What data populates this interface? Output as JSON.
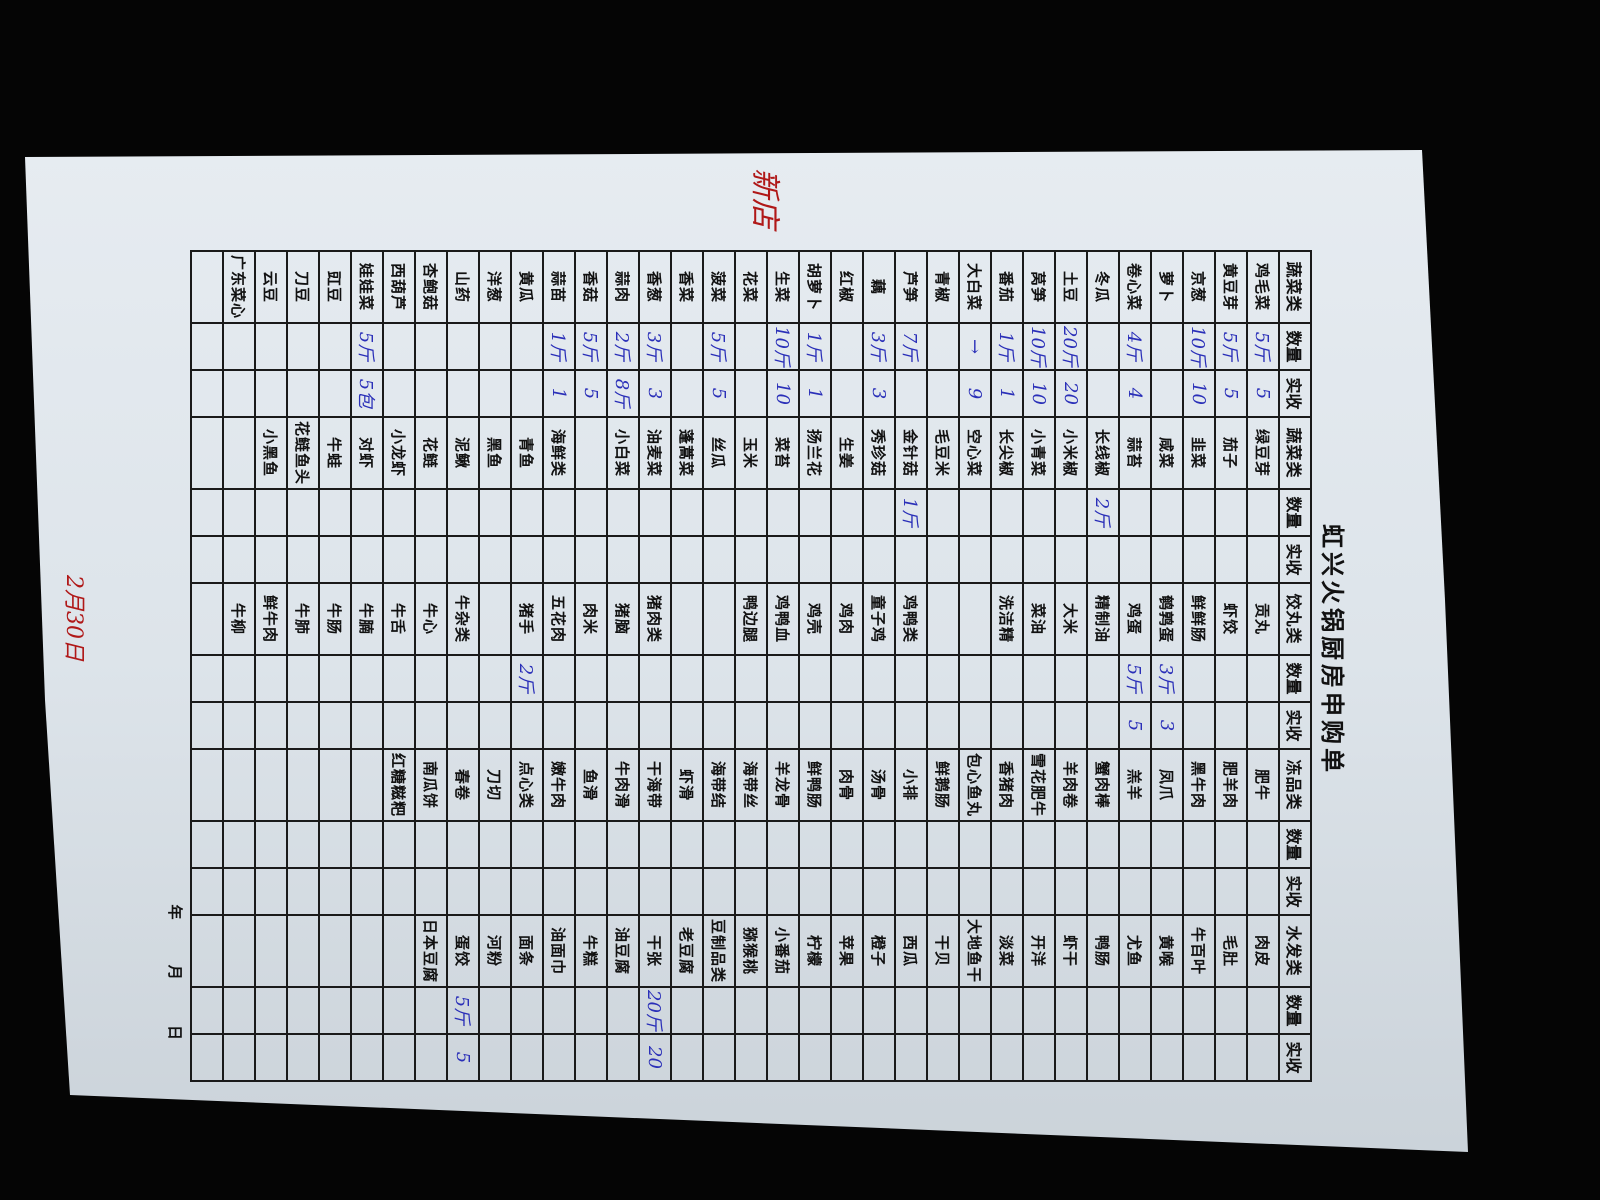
{
  "document": {
    "title": "虹兴火锅厨房申购单",
    "headers": [
      {
        "n": "蔬菜类",
        "q": "数量",
        "r": "实收"
      },
      {
        "n": "蔬菜类",
        "q": "数量",
        "r": "实收"
      },
      {
        "n": "饺丸类",
        "q": "数量",
        "r": "实收"
      },
      {
        "n": "冻品类",
        "q": "数量",
        "r": "实收"
      },
      {
        "n": "水发类",
        "q": "数量",
        "r": "实收"
      }
    ],
    "rows": [
      [
        {
          "n": "鸡毛菜",
          "q": "5斤",
          "r": "5"
        },
        {
          "n": "绿豆芽"
        },
        {
          "n": "贡丸"
        },
        {
          "n": "肥牛"
        },
        {
          "n": "肉皮"
        }
      ],
      [
        {
          "n": "黄豆芽",
          "q": "5斤",
          "r": "5"
        },
        {
          "n": "茄子"
        },
        {
          "n": "虾饺"
        },
        {
          "n": "肥羊肉"
        },
        {
          "n": "毛肚"
        }
      ],
      [
        {
          "n": "京葱",
          "q": "10斤",
          "r": "10"
        },
        {
          "n": "韭菜"
        },
        {
          "n": "鲜鲜肠"
        },
        {
          "n": "黑牛肉"
        },
        {
          "n": "牛百叶"
        }
      ],
      [
        {
          "n": "萝卜"
        },
        {
          "n": "咸菜"
        },
        {
          "n": "鹌鹑蛋",
          "q": "3斤",
          "r": "3"
        },
        {
          "n": "凤爪"
        },
        {
          "n": "黄喉"
        }
      ],
      [
        {
          "n": "卷心菜",
          "q": "4斤",
          "r": "4"
        },
        {
          "n": "蒜苔"
        },
        {
          "n": "鸡蛋",
          "q": "5斤",
          "r": "5"
        },
        {
          "n": "羔羊"
        },
        {
          "n": "尤鱼"
        }
      ],
      [
        {
          "n": "冬瓜"
        },
        {
          "n": "长线椒",
          "q": "2斤"
        },
        {
          "n": "精制油"
        },
        {
          "n": "蟹肉棒"
        },
        {
          "n": "鸭肠"
        }
      ],
      [
        {
          "n": "土豆",
          "q": "20斤",
          "r": "20"
        },
        {
          "n": "小米椒"
        },
        {
          "n": "大米"
        },
        {
          "n": "羊肉卷"
        },
        {
          "n": "虾干"
        }
      ],
      [
        {
          "n": "莴笋",
          "q": "10斤",
          "r": "10"
        },
        {
          "n": "小青菜"
        },
        {
          "n": "菜油"
        },
        {
          "n": "雪花肥牛"
        },
        {
          "n": "开洋"
        }
      ],
      [
        {
          "n": "番茄",
          "q": "1斤",
          "r": "1"
        },
        {
          "n": "长尖椒"
        },
        {
          "n": "洗洁精"
        },
        {
          "n": "香猪肉"
        },
        {
          "n": "淡菜"
        }
      ],
      [
        {
          "n": "大白菜",
          "q": "→",
          "r": "9"
        },
        {
          "n": "空心菜"
        },
        {
          "n": ""
        },
        {
          "n": "包心鱼丸"
        },
        {
          "n": "大地鱼干"
        }
      ],
      [
        {
          "n": "青椒"
        },
        {
          "n": "毛豆米"
        },
        {
          "n": ""
        },
        {
          "n": "鲜鹅肠"
        },
        {
          "n": "干贝"
        }
      ],
      [
        {
          "n": "芦笋",
          "q": "7斤"
        },
        {
          "n": "金针菇",
          "q": "1斤"
        },
        {
          "n": "鸡鸭类"
        },
        {
          "n": "小排"
        },
        {
          "n": "西瓜"
        }
      ],
      [
        {
          "n": "藕",
          "q": "3斤",
          "r": "3"
        },
        {
          "n": "秀珍菇"
        },
        {
          "n": "童子鸡"
        },
        {
          "n": "汤骨"
        },
        {
          "n": "橙子"
        }
      ],
      [
        {
          "n": "红椒"
        },
        {
          "n": "生姜"
        },
        {
          "n": "鸡肉"
        },
        {
          "n": "肉骨"
        },
        {
          "n": "苹果"
        }
      ],
      [
        {
          "n": "胡萝卜",
          "q": "1斤",
          "r": "1"
        },
        {
          "n": "扬兰花"
        },
        {
          "n": "鸡壳"
        },
        {
          "n": "鲜鸭肠"
        },
        {
          "n": "柠檬"
        }
      ],
      [
        {
          "n": "生菜",
          "q": "10斤",
          "r": "10"
        },
        {
          "n": "菜苔"
        },
        {
          "n": "鸡鸭血"
        },
        {
          "n": "羊龙骨"
        },
        {
          "n": "小番茄"
        }
      ],
      [
        {
          "n": "花菜"
        },
        {
          "n": "玉米"
        },
        {
          "n": "鸭边腿"
        },
        {
          "n": "海带丝"
        },
        {
          "n": "猕猴桃"
        }
      ],
      [
        {
          "n": "菠菜",
          "q": "5斤",
          "r": "5"
        },
        {
          "n": "丝瓜"
        },
        {
          "n": ""
        },
        {
          "n": "海带结"
        },
        {
          "n": "豆制品类"
        }
      ],
      [
        {
          "n": "香菜"
        },
        {
          "n": "蓬蒿菜"
        },
        {
          "n": ""
        },
        {
          "n": "虾滑"
        },
        {
          "n": "老豆腐"
        }
      ],
      [
        {
          "n": "香葱",
          "q": "3斤",
          "r": "3"
        },
        {
          "n": "油麦菜"
        },
        {
          "n": "猪肉类"
        },
        {
          "n": "干海带"
        },
        {
          "n": "干张",
          "q": "20斤",
          "r": "20"
        }
      ],
      [
        {
          "n": "蒜肉",
          "q": "2斤",
          "r": "8斤"
        },
        {
          "n": "小白菜"
        },
        {
          "n": "猪脑"
        },
        {
          "n": "牛肉滑"
        },
        {
          "n": "油豆腐"
        }
      ],
      [
        {
          "n": "香菇",
          "q": "5斤",
          "r": "5"
        },
        {
          "n": ""
        },
        {
          "n": "肉米"
        },
        {
          "n": "鱼滑"
        },
        {
          "n": "牛糕"
        }
      ],
      [
        {
          "n": "蒜苗",
          "q": "1斤",
          "r": "1"
        },
        {
          "n": "海鲜类"
        },
        {
          "n": "五花肉"
        },
        {
          "n": "嫩牛肉"
        },
        {
          "n": "油面巾"
        }
      ],
      [
        {
          "n": "黄瓜"
        },
        {
          "n": "青鱼"
        },
        {
          "n": "猪手",
          "q": "2斤"
        },
        {
          "n": "点心类"
        },
        {
          "n": "面条"
        }
      ],
      [
        {
          "n": "洋葱"
        },
        {
          "n": "黑鱼"
        },
        {
          "n": ""
        },
        {
          "n": "刀切"
        },
        {
          "n": "河粉"
        }
      ],
      [
        {
          "n": "山药"
        },
        {
          "n": "泥鳅"
        },
        {
          "n": "牛杂类"
        },
        {
          "n": "春卷"
        },
        {
          "n": "蛋饺",
          "q": "5斤",
          "r": "5"
        }
      ],
      [
        {
          "n": "杏鲍菇"
        },
        {
          "n": "花鲢"
        },
        {
          "n": "牛心"
        },
        {
          "n": "南瓜饼"
        },
        {
          "n": "日本豆腐"
        }
      ],
      [
        {
          "n": "西葫芦"
        },
        {
          "n": "小龙虾"
        },
        {
          "n": "牛舌"
        },
        {
          "n": "红糖糍粑"
        },
        {
          "n": ""
        }
      ],
      [
        {
          "n": "娃娃菜",
          "q": "5斤",
          "r": "5包"
        },
        {
          "n": "对虾"
        },
        {
          "n": "牛腩"
        },
        {
          "n": ""
        },
        {
          "n": ""
        }
      ],
      [
        {
          "n": "豇豆"
        },
        {
          "n": "牛蛙"
        },
        {
          "n": "牛肠"
        },
        {
          "n": ""
        },
        {
          "n": ""
        }
      ],
      [
        {
          "n": "刀豆"
        },
        {
          "n": "花鲢鱼头"
        },
        {
          "n": "牛肺"
        },
        {
          "n": ""
        },
        {
          "n": ""
        }
      ],
      [
        {
          "n": "云豆"
        },
        {
          "n": "小黑鱼"
        },
        {
          "n": "鲜牛肉"
        },
        {
          "n": ""
        },
        {
          "n": ""
        }
      ],
      [
        {
          "n": "广东菜心"
        },
        {
          "n": ""
        },
        {
          "n": "牛柳"
        },
        {
          "n": ""
        },
        {
          "n": ""
        }
      ],
      [
        {
          "n": ""
        },
        {
          "n": ""
        },
        {
          "n": ""
        },
        {
          "n": ""
        },
        {
          "n": ""
        }
      ]
    ],
    "date_footer": "年 月 日"
  },
  "annotations": {
    "top_note": "新店",
    "date_note": "2月30日"
  },
  "colors": {
    "handwriting_blue": "#2a2fb8",
    "handwriting_red": "#b01818",
    "paper": "#e3e9ef",
    "background": "#050505"
  }
}
